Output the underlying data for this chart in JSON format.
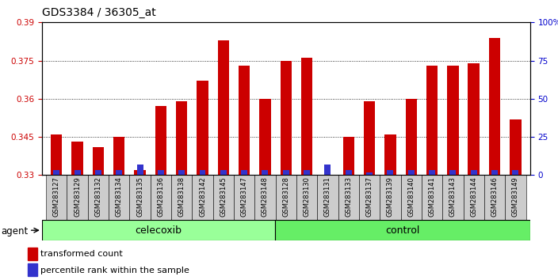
{
  "title": "GDS3384 / 36305_at",
  "samples": [
    "GSM283127",
    "GSM283129",
    "GSM283132",
    "GSM283134",
    "GSM283135",
    "GSM283136",
    "GSM283138",
    "GSM283142",
    "GSM283145",
    "GSM283147",
    "GSM283148",
    "GSM283128",
    "GSM283130",
    "GSM283131",
    "GSM283133",
    "GSM283137",
    "GSM283139",
    "GSM283140",
    "GSM283141",
    "GSM283143",
    "GSM283144",
    "GSM283146",
    "GSM283149"
  ],
  "red_values": [
    0.346,
    0.343,
    0.341,
    0.345,
    0.332,
    0.357,
    0.359,
    0.367,
    0.383,
    0.373,
    0.36,
    0.375,
    0.376,
    0.33,
    0.345,
    0.359,
    0.346,
    0.36,
    0.373,
    0.373,
    0.374,
    0.384,
    0.352
  ],
  "blue_heights": [
    0.002,
    0.002,
    0.002,
    0.002,
    0.004,
    0.002,
    0.002,
    0.002,
    0.002,
    0.002,
    0.002,
    0.002,
    0.002,
    0.004,
    0.002,
    0.001,
    0.002,
    0.002,
    0.002,
    0.002,
    0.002,
    0.002,
    0.002
  ],
  "celecoxib_count": 11,
  "control_count": 12,
  "ylim_left": [
    0.33,
    0.39
  ],
  "ylim_right": [
    0,
    100
  ],
  "yticks_left": [
    0.33,
    0.345,
    0.36,
    0.375,
    0.39
  ],
  "yticks_right": [
    0,
    25,
    50,
    75,
    100
  ],
  "bar_width": 0.55,
  "red_color": "#CC0000",
  "blue_color": "#3333CC",
  "bg_color": "#ffffff",
  "plot_bg": "#ffffff",
  "sample_label_bg": "#cccccc",
  "celecoxib_color": "#99FF99",
  "control_color": "#66EE66",
  "group_border_color": "#000000",
  "agent_label": "agent",
  "celecoxib_label": "celecoxib",
  "control_label": "control",
  "legend_red": "transformed count",
  "legend_blue": "percentile rank within the sample",
  "title_fontsize": 10,
  "axis_label_color_left": "#CC0000",
  "axis_label_color_right": "#0000CC",
  "tick_fontsize": 7.5,
  "sample_fontsize": 6,
  "group_fontsize": 9
}
